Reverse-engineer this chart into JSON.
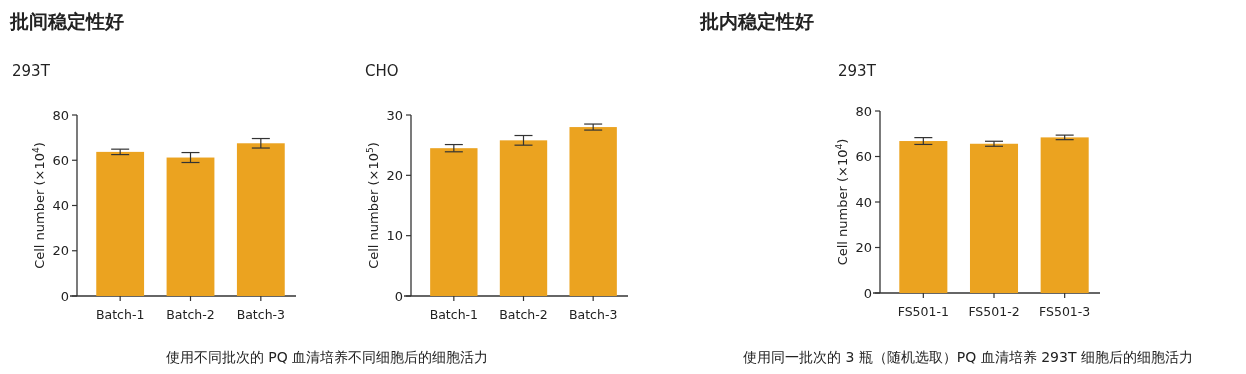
{
  "chart_data": [
    {
      "type": "bar",
      "title": "批间稳定性好",
      "subtitle": "293T",
      "ylabel": "Cell number (×10$^{4}$)",
      "categories": [
        "Batch-1",
        "Batch-2",
        "Batch-3"
      ],
      "values": [
        63.7,
        61.2,
        67.5
      ],
      "errors": [
        1.2,
        2.2,
        2.1
      ],
      "color": "#eba320",
      "ylim": [
        0,
        80
      ],
      "yticks": [
        0,
        20,
        40,
        60,
        80
      ],
      "annotations": [
        "使用不同批次的 PQ 血清培养不同细胞后的细胞活力"
      ]
    },
    {
      "type": "bar",
      "subtitle": "CHO",
      "ylabel": "Cell number (×10$^{5}$)",
      "categories": [
        "Batch-1",
        "Batch-2",
        "Batch-3"
      ],
      "values": [
        24.5,
        25.8,
        28.0
      ],
      "errors": [
        0.6,
        0.8,
        0.5
      ],
      "color": "#eba320",
      "ylim": [
        0,
        30
      ],
      "yticks": [
        0,
        10,
        20,
        30
      ]
    },
    {
      "type": "bar",
      "title": "批内稳定性好",
      "subtitle": "293T",
      "ylabel": "Cell number (×10$^{4}$)",
      "categories": [
        "FS501-1",
        "FS501-2",
        "FS501-3"
      ],
      "values": [
        66.8,
        65.6,
        68.4
      ],
      "errors": [
        1.5,
        1.1,
        1.0
      ],
      "color": "#eba320",
      "ylim": [
        0,
        80
      ],
      "yticks": [
        0,
        20,
        40,
        60,
        80
      ],
      "annotations": [
        "使用同一批次的 3 瓶（随机选取）PQ 血清培养 293T 细胞后的细胞活力"
      ]
    }
  ]
}
